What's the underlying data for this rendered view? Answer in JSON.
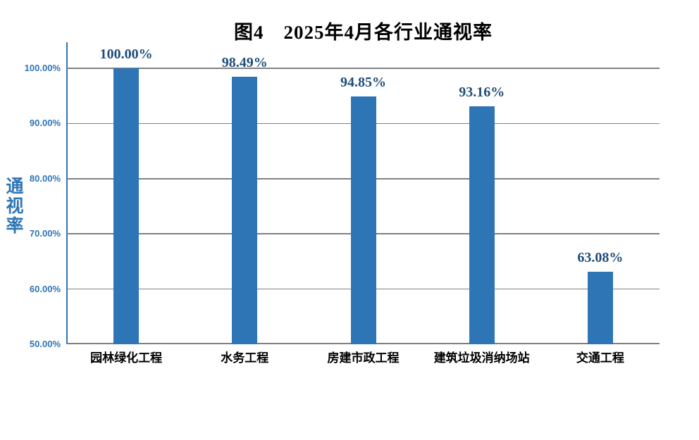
{
  "chart_data": {
    "type": "bar",
    "title": "图4　2025年4月各行业通视率",
    "categories": [
      "园林绿化工程",
      "水务工程",
      "房建市政工程",
      "建筑垃圾消纳场站",
      "交通工程"
    ],
    "values": [
      100.0,
      98.49,
      94.85,
      93.16,
      63.08
    ],
    "data_labels": [
      "100.00%",
      "98.49%",
      "94.85%",
      "93.16%",
      "63.08%"
    ],
    "xlabel": "",
    "ylabel": "通视率",
    "ylim": [
      50,
      100
    ],
    "yticks": [
      {
        "value": 50,
        "label": "50.00%"
      },
      {
        "value": 60,
        "label": "60.00%"
      },
      {
        "value": 70,
        "label": "70.00%"
      },
      {
        "value": 80,
        "label": "80.00%"
      },
      {
        "value": 90,
        "label": "90.00%"
      },
      {
        "value": 100,
        "label": "100.00%"
      }
    ],
    "grid": true,
    "legend_position": "none",
    "colors": {
      "bar": "#2E75B6",
      "value_label": "#1F4E79",
      "axis_line": "#2E75B6",
      "gridline": "#808080",
      "baseline": "#808080",
      "y_tick_label": "#2E75B6",
      "y_axis_title": "#2E75B6",
      "x_tick_label": "#000000",
      "title": "#000000",
      "background": "#FFFFFF"
    }
  }
}
